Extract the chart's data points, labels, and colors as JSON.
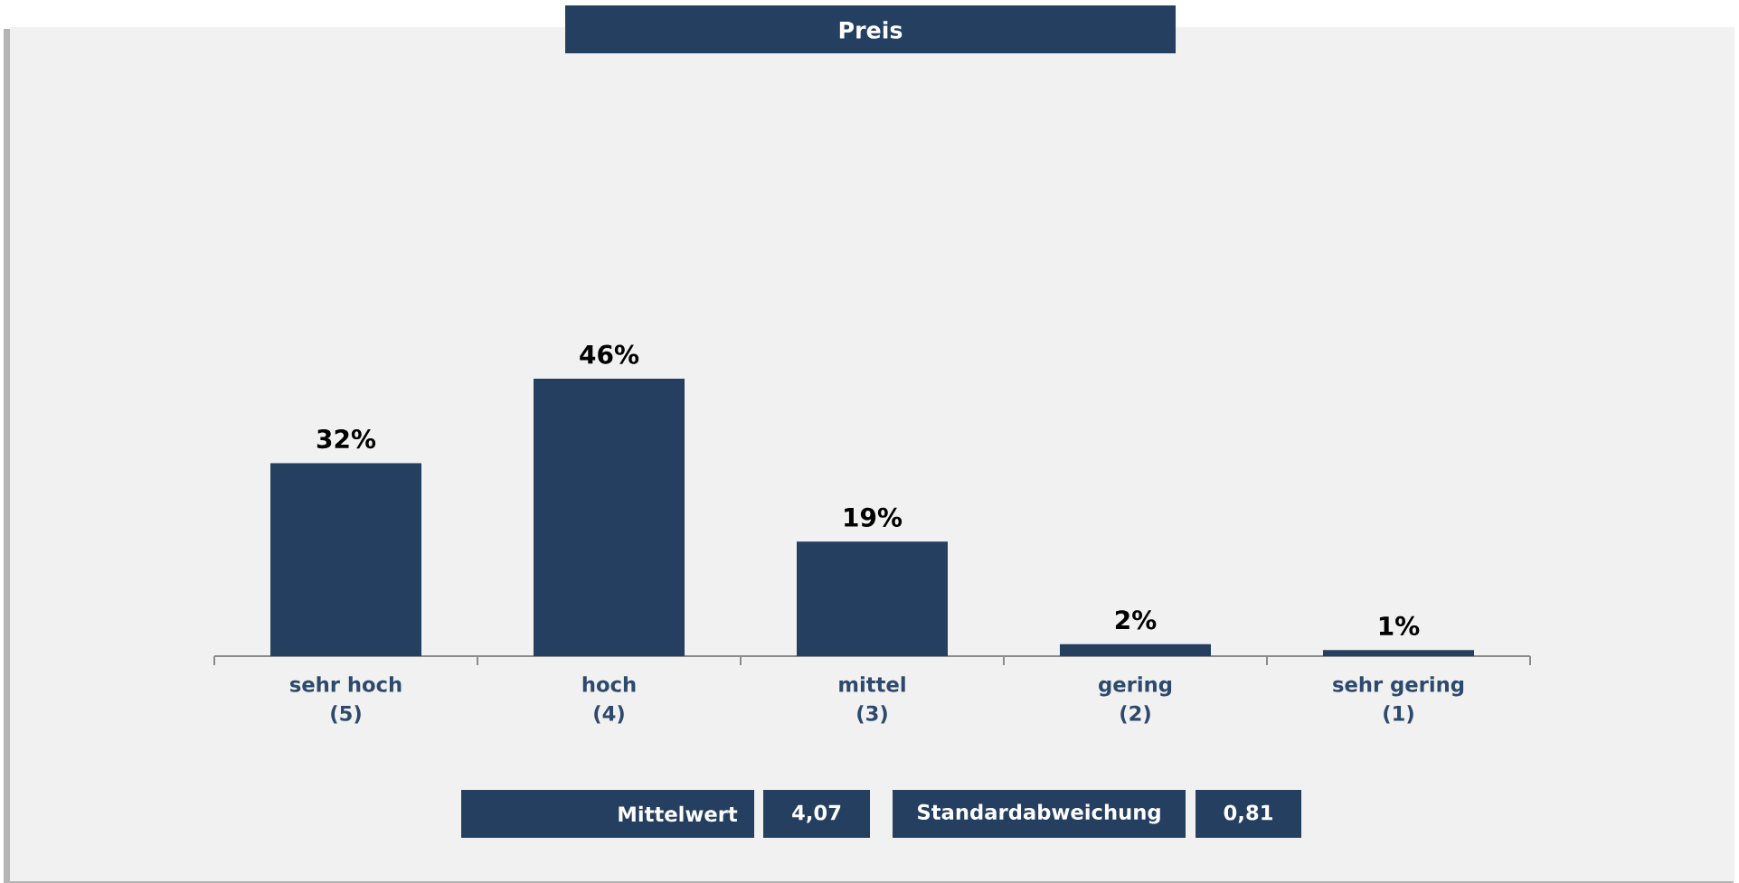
{
  "chart_data": {
    "type": "bar",
    "title": "Preis",
    "categories": [
      "sehr hoch\n(5)",
      "hoch\n(4)",
      "mittel\n(3)",
      "gering\n(2)",
      "sehr gering\n(1)"
    ],
    "values": [
      32,
      46,
      19,
      2,
      1
    ],
    "value_labels": [
      "32%",
      "46%",
      "19%",
      "2%",
      "1%"
    ],
    "color": "#243f60",
    "annotations": [
      "Mittelwert",
      "4,07",
      "Standardabweichung",
      "0,81"
    ]
  }
}
